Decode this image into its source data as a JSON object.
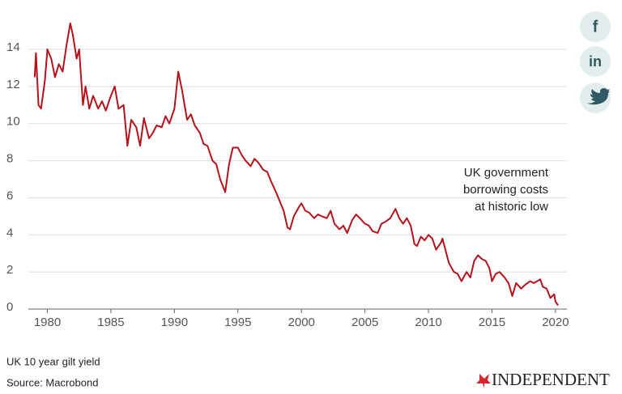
{
  "chart_data": {
    "type": "line",
    "annotation": [
      "UK government",
      "borrowing costs",
      "at historic low"
    ],
    "caption": "UK 10 year gilt yield",
    "source": "Source: Macrobond",
    "brand": "INDEPENDENT",
    "share_buttons": [
      "f",
      "in"
    ],
    "color": "#b5121b",
    "grid": true,
    "xlim": [
      1978.5,
      2020.9
    ],
    "xticks": [
      1980,
      1985,
      1990,
      1995,
      2000,
      2005,
      2010,
      2015,
      2020
    ],
    "ylim": [
      0,
      15.5
    ],
    "yticks": [
      0,
      2,
      4,
      6,
      8,
      10,
      12,
      14
    ],
    "x": [
      1979.0,
      1979.1,
      1979.3,
      1979.5,
      1979.8,
      1980.0,
      1980.3,
      1980.6,
      1980.9,
      1981.2,
      1981.5,
      1981.8,
      1982.0,
      1982.3,
      1982.5,
      1982.8,
      1983.0,
      1983.3,
      1983.6,
      1984.0,
      1984.3,
      1984.6,
      1985.0,
      1985.3,
      1985.6,
      1986.0,
      1986.3,
      1986.6,
      1987.0,
      1987.3,
      1987.6,
      1988.0,
      1988.3,
      1988.6,
      1989.0,
      1989.3,
      1989.6,
      1990.0,
      1990.3,
      1990.6,
      1991.0,
      1991.3,
      1991.6,
      1992.0,
      1992.3,
      1992.6,
      1993.0,
      1993.3,
      1993.6,
      1994.0,
      1994.3,
      1994.6,
      1995.0,
      1995.3,
      1995.6,
      1996.0,
      1996.3,
      1996.6,
      1997.0,
      1997.3,
      1997.6,
      1998.0,
      1998.3,
      1998.6,
      1998.9,
      1999.1,
      1999.4,
      1999.8,
      2000.0,
      2000.3,
      2000.6,
      2001.0,
      2001.3,
      2001.6,
      2002.0,
      2002.3,
      2002.6,
      2003.0,
      2003.3,
      2003.6,
      2004.0,
      2004.3,
      2004.6,
      2005.0,
      2005.3,
      2005.6,
      2006.0,
      2006.3,
      2006.6,
      2007.0,
      2007.4,
      2007.7,
      2008.0,
      2008.3,
      2008.6,
      2008.9,
      2009.1,
      2009.4,
      2009.7,
      2010.0,
      2010.3,
      2010.6,
      2011.0,
      2011.1,
      2011.6,
      2012.0,
      2012.3,
      2012.6,
      2013.0,
      2013.3,
      2013.6,
      2013.9,
      2014.2,
      2014.5,
      2014.8,
      2015.0,
      2015.3,
      2015.6,
      2016.0,
      2016.3,
      2016.6,
      2016.9,
      2017.3,
      2017.6,
      2018.0,
      2018.3,
      2018.8,
      2019.0,
      2019.3,
      2019.6,
      2019.9,
      2020.0,
      2020.2
    ],
    "values": [
      12.5,
      13.8,
      11.0,
      10.8,
      12.3,
      14.0,
      13.5,
      12.5,
      13.2,
      12.8,
      14.2,
      15.4,
      14.8,
      13.5,
      14.0,
      11.0,
      12.0,
      10.8,
      11.5,
      10.8,
      11.2,
      10.7,
      11.5,
      12.0,
      10.8,
      11.0,
      8.8,
      10.2,
      9.8,
      8.8,
      10.3,
      9.2,
      9.5,
      9.9,
      9.8,
      10.4,
      10.0,
      10.8,
      12.8,
      11.8,
      10.2,
      10.5,
      9.9,
      9.5,
      8.9,
      8.8,
      8.0,
      7.8,
      7.0,
      6.3,
      7.8,
      8.7,
      8.7,
      8.3,
      8.0,
      7.7,
      8.1,
      7.9,
      7.5,
      7.4,
      6.9,
      6.3,
      5.8,
      5.3,
      4.4,
      4.3,
      5.0,
      5.5,
      5.7,
      5.3,
      5.2,
      4.9,
      5.1,
      5.0,
      4.9,
      5.3,
      4.6,
      4.3,
      4.5,
      4.1,
      4.8,
      5.1,
      4.9,
      4.6,
      4.5,
      4.2,
      4.1,
      4.6,
      4.7,
      4.9,
      5.4,
      4.9,
      4.6,
      4.9,
      4.5,
      3.5,
      3.4,
      3.9,
      3.7,
      4.0,
      3.8,
      3.2,
      3.6,
      3.8,
      2.5,
      2.0,
      1.9,
      1.5,
      2.0,
      1.7,
      2.6,
      2.9,
      2.7,
      2.6,
      2.2,
      1.5,
      1.9,
      2.0,
      1.7,
      1.4,
      0.7,
      1.4,
      1.1,
      1.3,
      1.5,
      1.4,
      1.6,
      1.2,
      1.1,
      0.6,
      0.8,
      0.4,
      0.2
    ]
  }
}
